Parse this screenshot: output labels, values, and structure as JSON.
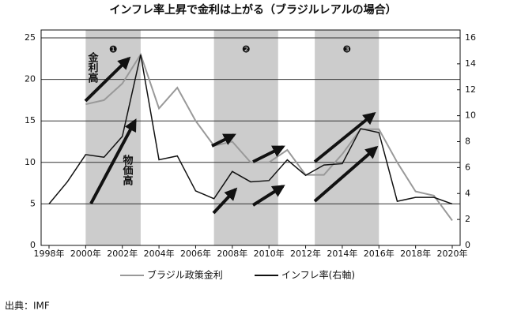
{
  "chart_data": {
    "type": "line",
    "title": "インフレ率上昇で金利は上がる（ブラジルレアルの場合）",
    "x": [
      1998,
      1999,
      2000,
      2001,
      2002,
      2003,
      2004,
      2005,
      2006,
      2007,
      2008,
      2009,
      2010,
      2011,
      2012,
      2013,
      2014,
      2015,
      2016,
      2017,
      2018,
      2019,
      2020
    ],
    "xlim": [
      1998,
      2020
    ],
    "xticks": [
      {
        "value": 1998,
        "label": "1998年"
      },
      {
        "value": 2000,
        "label": "2000年"
      },
      {
        "value": 2002,
        "label": "2002年"
      },
      {
        "value": 2004,
        "label": "2004年"
      },
      {
        "value": 2006,
        "label": "2006年"
      },
      {
        "value": 2008,
        "label": "2008年"
      },
      {
        "value": 2010,
        "label": "2010年"
      },
      {
        "value": 2012,
        "label": "2012年"
      },
      {
        "value": 2014,
        "label": "2014年"
      },
      {
        "value": 2016,
        "label": "2016年"
      },
      {
        "value": 2018,
        "label": "2018年"
      },
      {
        "value": 2020,
        "label": "2020年"
      }
    ],
    "ylim": [
      0,
      25
    ],
    "yticks": [
      0,
      5,
      10,
      15,
      20,
      25
    ],
    "y2lim": [
      0,
      16
    ],
    "y2ticks": [
      0,
      2,
      4,
      6,
      8,
      10,
      12,
      14,
      16
    ],
    "grid": true,
    "series": [
      {
        "name": "ブラジル政策金利",
        "color": "#999999",
        "values": [
          null,
          null,
          17,
          17.5,
          19.5,
          23,
          16.5,
          19,
          15,
          12,
          12.5,
          10,
          10,
          11.5,
          8.5,
          8.5,
          11,
          14,
          14,
          10,
          6.5,
          6,
          3
        ]
      },
      {
        "name": "インフレ率(右軸)",
        "color": "#111111",
        "axis": "y2",
        "values": [
          3.2,
          4.9,
          7,
          6.8,
          8.4,
          14.7,
          6.6,
          6.9,
          4.2,
          3.6,
          5.7,
          4.9,
          5,
          6.6,
          5.4,
          6.2,
          6.3,
          9,
          8.7,
          3.4,
          3.7,
          3.7,
          3.2
        ]
      }
    ],
    "highlights": [
      {
        "start": 2000,
        "end": 2003,
        "label": "❶"
      },
      {
        "start": 2007,
        "end": 2010.5,
        "label": "❷"
      },
      {
        "start": 2012.5,
        "end": 2016,
        "label": "❸"
      }
    ],
    "annotations": [
      "金利高",
      "物価高"
    ],
    "source": "出典：IMF"
  }
}
